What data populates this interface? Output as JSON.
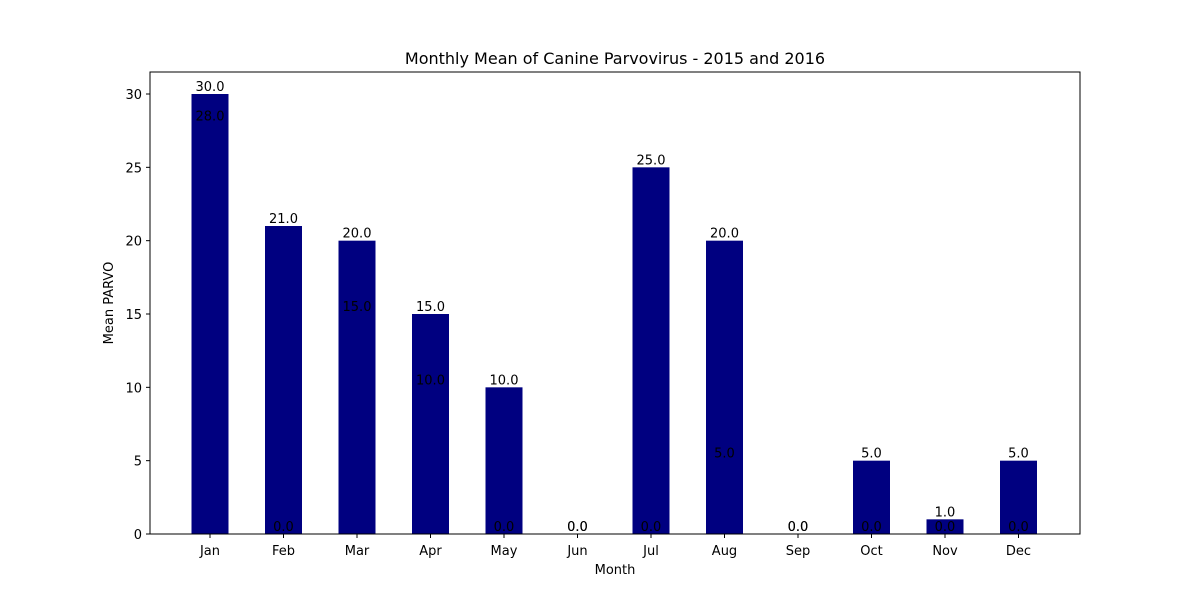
{
  "chart_data": {
    "type": "bar",
    "title": "Monthly Mean of Canine Parvovirus - 2015 and 2016",
    "xlabel": "Month",
    "ylabel": "Mean PARVO",
    "categories": [
      "Jan",
      "Feb",
      "Mar",
      "Apr",
      "May",
      "Jun",
      "Jul",
      "Aug",
      "Sep",
      "Oct",
      "Nov",
      "Dec"
    ],
    "series": [
      {
        "values": [
          30.0,
          21.0,
          20.0,
          15.0,
          10.0,
          0.0,
          25.0,
          20.0,
          0.0,
          5.0,
          1.0,
          5.0
        ]
      },
      {
        "values": [
          28.0,
          0.0,
          15.0,
          10.0,
          0.0,
          0.0,
          0.0,
          5.0,
          0.0,
          0.0,
          0.0,
          0.0
        ]
      }
    ],
    "value_labels": [
      [
        "30.0",
        "21.0",
        "20.0",
        "15.0",
        "10.0",
        "0.0",
        "25.0",
        "20.0",
        "0.0",
        "5.0",
        "1.0",
        "5.0"
      ],
      [
        "28.0",
        "0.0",
        "15.0",
        "10.0",
        "0.0",
        "0.0",
        "0.0",
        "5.0",
        "0.0",
        "0.0",
        "0.0",
        "0.0"
      ]
    ],
    "ylim": [
      0,
      31.5
    ],
    "yticks": [
      0,
      5,
      10,
      15,
      20,
      25,
      30
    ],
    "ytick_labels": [
      "0",
      "5",
      "10",
      "15",
      "20",
      "25",
      "30"
    ],
    "grid": false,
    "bar_color": "#000080"
  }
}
